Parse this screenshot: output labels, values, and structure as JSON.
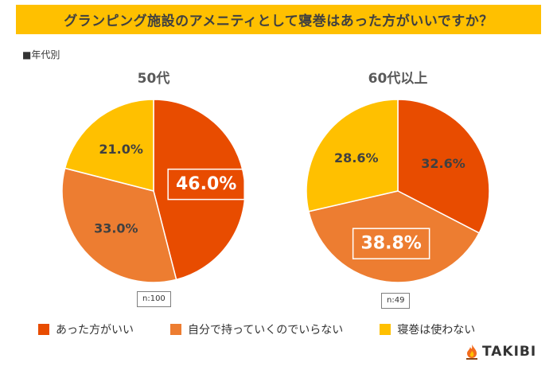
{
  "title": "グランピング施設のアメニティとして寝巻はあった方がいいですか？",
  "section_label": "■年代別",
  "legend": [
    {
      "label": "あった方がいい",
      "color": "#E84C00"
    },
    {
      "label": "自分で持っていくのでいらない",
      "color": "#ED7D31"
    },
    {
      "label": "寝巻は使わない",
      "color": "#FFC000"
    }
  ],
  "logo": {
    "text": "TAKIBI",
    "icon": "campfire-icon"
  },
  "chart_data": [
    {
      "type": "pie",
      "title": "50代",
      "n_label": "n:100",
      "slices": [
        {
          "label": "あった方がいい",
          "value": 46.0,
          "text": "46.0%",
          "color": "#E84C00",
          "highlight": true
        },
        {
          "label": "自分で持っていくのでいらない",
          "value": 33.0,
          "text": "33.0%",
          "color": "#ED7D31",
          "highlight": false
        },
        {
          "label": "寝巻は使わない",
          "value": 21.0,
          "text": "21.0%",
          "color": "#FFC000",
          "highlight": false
        }
      ]
    },
    {
      "type": "pie",
      "title": "60代以上",
      "n_label": "n:49",
      "slices": [
        {
          "label": "あった方がいい",
          "value": 32.6,
          "text": "32.6%",
          "color": "#E84C00",
          "highlight": false
        },
        {
          "label": "自分で持っていくのでいらない",
          "value": 38.8,
          "text": "38.8%",
          "color": "#ED7D31",
          "highlight": true
        },
        {
          "label": "寝巻は使わない",
          "value": 28.6,
          "text": "28.6%",
          "color": "#FFC000",
          "highlight": false
        }
      ]
    }
  ]
}
